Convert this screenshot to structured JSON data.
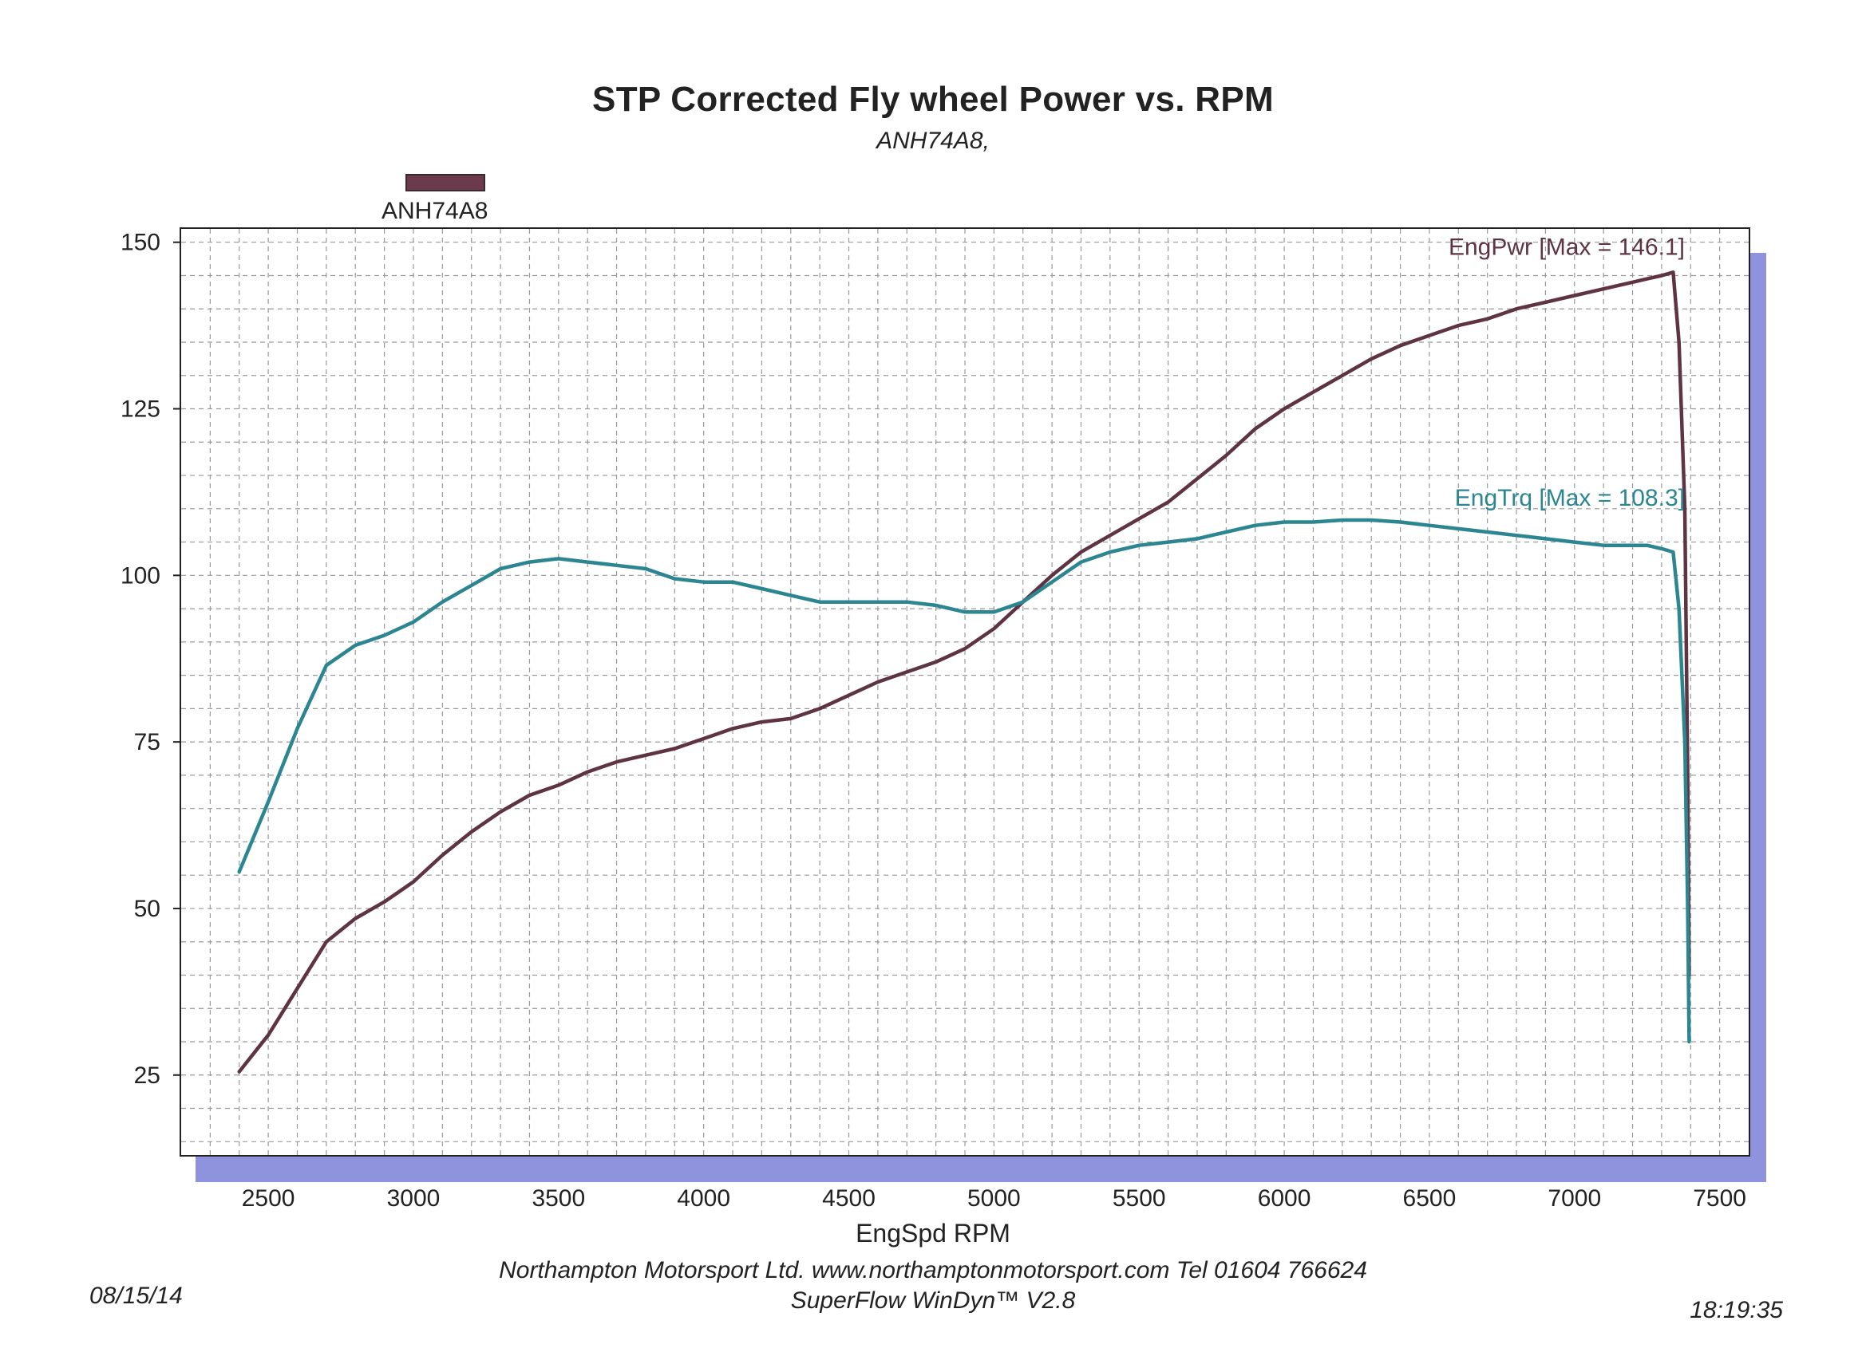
{
  "header": {
    "title": "STP Corrected Fly wheel Power vs. RPM",
    "subtitle": "ANH74A8,"
  },
  "legend": {
    "label": "ANH74A8",
    "color": "#6b3a4c"
  },
  "axes": {
    "xlabel": "EngSpd  RPM"
  },
  "footer": {
    "company": "Northampton Motorsport Ltd. www.northamptonmotorsport.com Tel 01604 766624",
    "software": "SuperFlow WinDyn™ V2.8",
    "date": "08/15/14",
    "time": "18:19:35"
  },
  "colors": {
    "power": "#5e3444",
    "torque": "#2b8691",
    "shadow": "#8f93dd",
    "grid": "#999999"
  },
  "chart_data": {
    "type": "line",
    "title": "STP Corrected Fly wheel Power vs. RPM",
    "subtitle": "ANH74A8,",
    "xlabel": "EngSpd  RPM",
    "ylabel": "",
    "xlim": [
      2200,
      7600
    ],
    "ylim": [
      13,
      152
    ],
    "x_ticks": [
      2500,
      3000,
      3500,
      4000,
      4500,
      5000,
      5500,
      6000,
      6500,
      7000,
      7500
    ],
    "y_ticks": [
      25,
      50,
      75,
      100,
      125,
      150
    ],
    "grid": true,
    "legend": "top-left",
    "series": [
      {
        "name": "EngPwr",
        "label": "EngPwr [Max = 146.1]",
        "color": "#5e3444",
        "x": [
          2400,
          2500,
          2600,
          2700,
          2800,
          2900,
          3000,
          3100,
          3200,
          3300,
          3400,
          3500,
          3600,
          3700,
          3800,
          3900,
          4000,
          4100,
          4200,
          4300,
          4400,
          4500,
          4600,
          4700,
          4800,
          4900,
          5000,
          5100,
          5200,
          5300,
          5400,
          5500,
          5600,
          5700,
          5800,
          5900,
          6000,
          6100,
          6200,
          6300,
          6400,
          6500,
          6600,
          6700,
          6800,
          6900,
          7000,
          7100,
          7200,
          7250,
          7300,
          7340,
          7360,
          7380,
          7390,
          7395
        ],
        "values": [
          25.5,
          31,
          38,
          45,
          48.5,
          51,
          54,
          58,
          61.5,
          64.5,
          67,
          68.5,
          70.5,
          72,
          73,
          74,
          75.5,
          77,
          78,
          78.5,
          80,
          82,
          84,
          85.5,
          87,
          89,
          92,
          96,
          100,
          103.5,
          106,
          108.5,
          111,
          114.5,
          118,
          122,
          125,
          127.5,
          130,
          132.5,
          134.5,
          136,
          137.5,
          138.5,
          140,
          141,
          142,
          143,
          144,
          144.5,
          145,
          145.5,
          135,
          110,
          70,
          40
        ]
      },
      {
        "name": "EngTrq",
        "label": "EngTrq [Max = 108.3]",
        "color": "#2b8691",
        "x": [
          2400,
          2500,
          2600,
          2700,
          2800,
          2900,
          3000,
          3100,
          3200,
          3300,
          3400,
          3500,
          3600,
          3700,
          3800,
          3900,
          4000,
          4100,
          4200,
          4300,
          4400,
          4500,
          4600,
          4700,
          4800,
          4900,
          5000,
          5100,
          5200,
          5300,
          5400,
          5500,
          5600,
          5700,
          5800,
          5900,
          6000,
          6100,
          6200,
          6300,
          6400,
          6500,
          6600,
          6700,
          6800,
          6900,
          7000,
          7100,
          7200,
          7250,
          7300,
          7340,
          7360,
          7380,
          7390,
          7395
        ],
        "values": [
          55.5,
          66,
          77,
          86.5,
          89.5,
          91,
          93,
          96,
          98.5,
          101,
          102,
          102.5,
          102,
          101.5,
          101,
          99.5,
          99,
          99,
          98,
          97,
          96,
          96,
          96,
          96,
          95.5,
          94.5,
          94.5,
          96,
          99,
          102,
          103.5,
          104.5,
          105,
          105.5,
          106.5,
          107.5,
          108,
          108,
          108.3,
          108.3,
          108,
          107.5,
          107,
          106.5,
          106,
          105.5,
          105,
          104.5,
          104.5,
          104.5,
          104,
          103.5,
          95,
          75,
          50,
          30
        ]
      }
    ]
  }
}
